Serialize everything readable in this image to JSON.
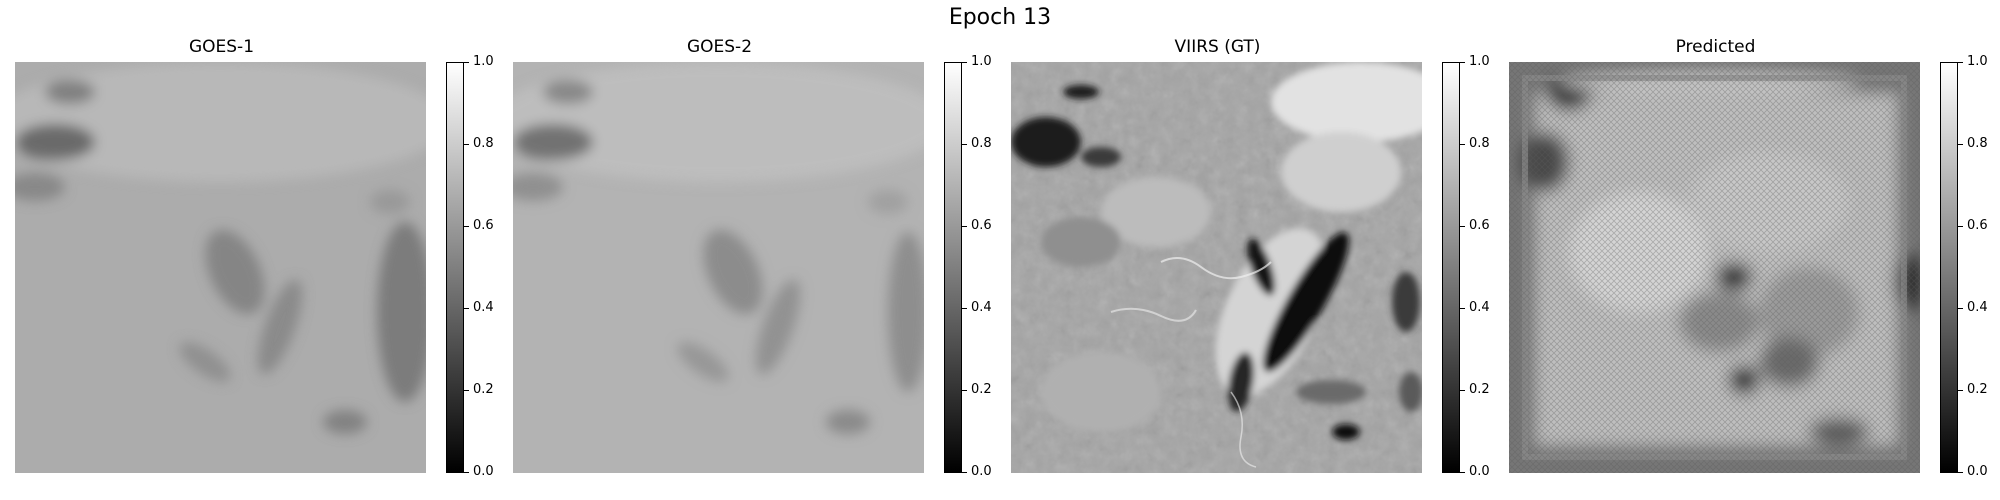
{
  "figure": {
    "title": "Epoch 13"
  },
  "chart_data": [
    {
      "type": "heatmap",
      "title": "GOES-1",
      "colormap": "gray",
      "vmin": 0.0,
      "vmax": 1.0,
      "colorbar_ticks": [
        "0.0",
        "0.2",
        "0.4",
        "0.6",
        "0.8",
        "1.0"
      ]
    },
    {
      "type": "heatmap",
      "title": "GOES-2",
      "colormap": "gray",
      "vmin": 0.0,
      "vmax": 1.0,
      "colorbar_ticks": [
        "0.0",
        "0.2",
        "0.4",
        "0.6",
        "0.8",
        "1.0"
      ]
    },
    {
      "type": "heatmap",
      "title": "VIIRS (GT)",
      "colormap": "gray",
      "vmin": 0.0,
      "vmax": 1.0,
      "colorbar_ticks": [
        "0.0",
        "0.2",
        "0.4",
        "0.6",
        "0.8",
        "1.0"
      ]
    },
    {
      "type": "heatmap",
      "title": "Predicted",
      "colormap": "gray",
      "vmin": 0.0,
      "vmax": 1.0,
      "colorbar_ticks": [
        "0.0",
        "0.2",
        "0.4",
        "0.6",
        "0.8",
        "1.0"
      ]
    }
  ]
}
